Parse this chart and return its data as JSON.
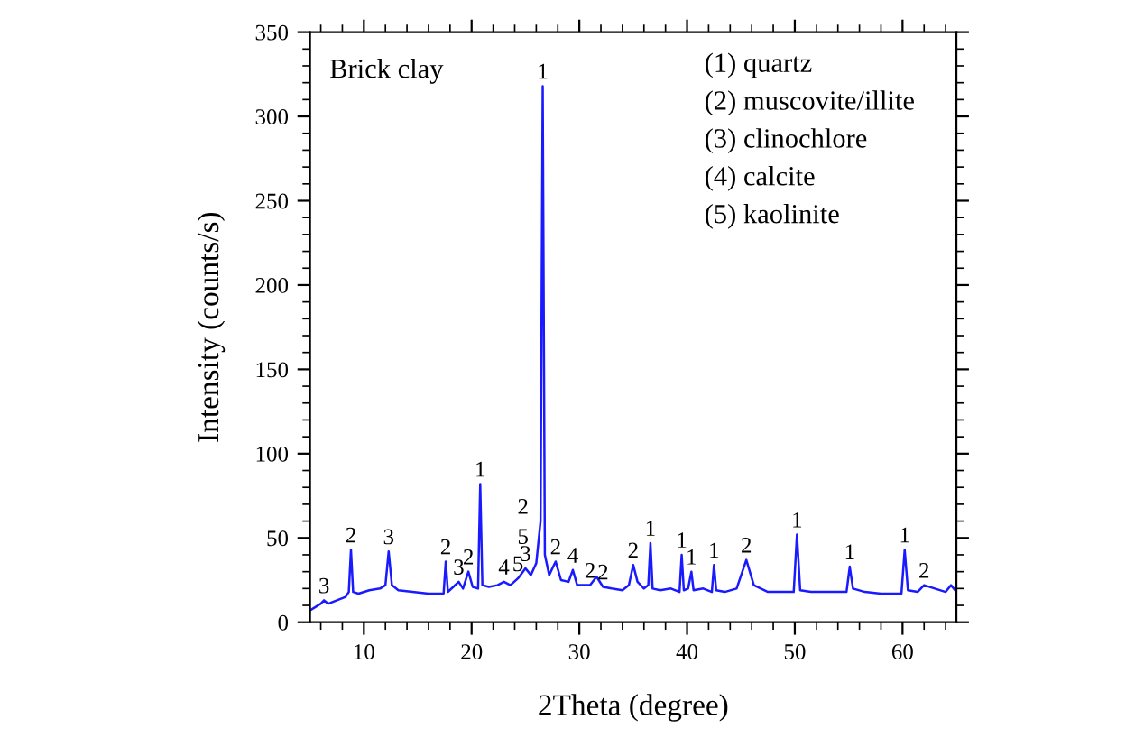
{
  "chart_data": {
    "type": "line",
    "xlabel": "2Theta (degree)",
    "ylabel": "Intensity (counts/s)",
    "xlim": [
      5,
      65
    ],
    "ylim": [
      0,
      350
    ],
    "xticks": [
      {
        "value": 6,
        "label": null
      },
      {
        "value": 8,
        "label": null
      },
      10,
      {
        "value": 12,
        "label": null
      },
      {
        "value": 14,
        "label": null
      },
      {
        "value": 16,
        "label": null
      },
      {
        "value": 18,
        "label": null
      },
      20,
      {
        "value": 22,
        "label": null
      },
      {
        "value": 24,
        "label": null
      },
      {
        "value": 26,
        "label": null
      },
      {
        "value": 28,
        "label": null
      },
      30,
      {
        "value": 32,
        "label": null
      },
      {
        "value": 34,
        "label": null
      },
      {
        "value": 36,
        "label": null
      },
      {
        "value": 38,
        "label": null
      },
      40,
      {
        "value": 42,
        "label": null
      },
      {
        "value": 44,
        "label": null
      },
      {
        "value": 46,
        "label": null
      },
      {
        "value": 48,
        "label": null
      },
      50,
      {
        "value": 52,
        "label": null
      },
      {
        "value": 54,
        "label": null
      },
      {
        "value": 56,
        "label": null
      },
      {
        "value": 58,
        "label": null
      },
      60,
      {
        "value": 62,
        "label": null
      },
      {
        "value": 64,
        "label": null
      }
    ],
    "yticks": [
      0,
      {
        "value": 10,
        "label": null
      },
      {
        "value": 20,
        "label": null
      },
      {
        "value": 30,
        "label": null
      },
      {
        "value": 40,
        "label": null
      },
      50,
      {
        "value": 60,
        "label": null
      },
      {
        "value": 70,
        "label": null
      },
      {
        "value": 80,
        "label": null
      },
      {
        "value": 90,
        "label": null
      },
      100,
      {
        "value": 110,
        "label": null
      },
      {
        "value": 120,
        "label": null
      },
      {
        "value": 130,
        "label": null
      },
      {
        "value": 140,
        "label": null
      },
      150,
      {
        "value": 160,
        "label": null
      },
      {
        "value": 170,
        "label": null
      },
      {
        "value": 180,
        "label": null
      },
      {
        "value": 190,
        "label": null
      },
      200,
      {
        "value": 210,
        "label": null
      },
      {
        "value": 220,
        "label": null
      },
      {
        "value": 230,
        "label": null
      },
      {
        "value": 240,
        "label": null
      },
      250,
      {
        "value": 260,
        "label": null
      },
      {
        "value": 270,
        "label": null
      },
      {
        "value": 280,
        "label": null
      },
      {
        "value": 290,
        "label": null
      },
      300,
      {
        "value": 310,
        "label": null
      },
      {
        "value": 320,
        "label": null
      },
      {
        "value": 330,
        "label": null
      },
      {
        "value": 340,
        "label": null
      },
      350
    ],
    "grid": false,
    "legend": false,
    "marker": "none",
    "line_style": "solid",
    "series": [
      {
        "color": "#1a1aff",
        "x": [
          5,
          5.5,
          6,
          6.3,
          6.7,
          7.5,
          8.3,
          8.6,
          8.8,
          9.0,
          9.5,
          10.5,
          11.5,
          12.0,
          12.3,
          12.6,
          13.2,
          14.5,
          16,
          17.4,
          17.6,
          17.8,
          18.3,
          18.8,
          19.2,
          19.7,
          20.1,
          20.6,
          20.8,
          21.0,
          21.6,
          22.4,
          23.0,
          23.6,
          24.3,
          25.0,
          25.5,
          26.0,
          26.4,
          26.6,
          26.8,
          27.2,
          27.8,
          28.3,
          29.0,
          29.4,
          29.8,
          30.4,
          31.0,
          31.6,
          32.2,
          33.0,
          34.0,
          34.6,
          35.0,
          35.4,
          36.0,
          36.4,
          36.6,
          36.8,
          37.5,
          38.5,
          39.3,
          39.5,
          39.7,
          40.1,
          40.4,
          40.6,
          41.5,
          42.3,
          42.5,
          42.7,
          43.5,
          44.6,
          45.5,
          46.2,
          47.5,
          49.0,
          49.9,
          50.2,
          50.5,
          51.5,
          53.0,
          54.8,
          55.1,
          55.4,
          56.5,
          58.0,
          59.9,
          60.2,
          60.5,
          61.4,
          62.0,
          63.0,
          64.0,
          64.5,
          65
        ],
        "values": [
          7,
          9,
          11,
          13,
          11,
          13,
          15,
          18,
          43,
          18,
          17,
          19,
          20,
          22,
          42,
          22,
          19,
          18,
          17,
          17,
          36,
          18,
          21,
          24,
          20,
          30,
          21,
          20,
          82,
          22,
          21,
          22,
          24,
          22,
          26,
          32,
          28,
          35,
          60,
          318,
          40,
          28,
          36,
          25,
          24,
          31,
          22,
          22,
          22,
          27,
          21,
          20,
          19,
          22,
          34,
          24,
          20,
          22,
          47,
          20,
          19,
          20,
          18,
          40,
          19,
          20,
          30,
          19,
          20,
          18,
          34,
          19,
          18,
          20,
          37,
          22,
          18,
          18,
          18,
          52,
          19,
          18,
          18,
          18,
          33,
          20,
          18,
          17,
          17,
          43,
          19,
          18,
          22,
          20,
          18,
          22,
          18
        ]
      }
    ],
    "annotations": [
      "Brick clay",
      "(1) quartz",
      "(2) muscovite/illite",
      "(3) clinochlore",
      "(4) calcite",
      "(5) kaolinite",
      {
        "text": "3",
        "x": 6.3,
        "y": 13
      },
      {
        "text": "2",
        "x": 8.8,
        "y": 43
      },
      {
        "text": "3",
        "x": 12.3,
        "y": 42
      },
      {
        "text": "2",
        "x": 17.6,
        "y": 36
      },
      {
        "text": "3",
        "x": 18.8,
        "y": 24
      },
      {
        "text": "2",
        "x": 19.7,
        "y": 30
      },
      {
        "text": "1",
        "x": 20.8,
        "y": 82
      },
      {
        "text": "4",
        "x": 23.0,
        "y": 24
      },
      {
        "text": "5",
        "x": 24.3,
        "y": 26
      },
      {
        "text": "3",
        "x": 25.0,
        "y": 32
      },
      {
        "text": "5",
        "x": 26.4,
        "y": 60
      },
      {
        "text": "2",
        "x": 26.4,
        "y": 60
      },
      {
        "text": "1",
        "x": 26.6,
        "y": 318
      },
      {
        "text": "2",
        "x": 27.8,
        "y": 36
      },
      {
        "text": "4",
        "x": 29.4,
        "y": 31
      },
      {
        "text": "2",
        "x": 31.0,
        "y": 22
      },
      {
        "text": "2",
        "x": 32.2,
        "y": 21
      },
      {
        "text": "2",
        "x": 35.0,
        "y": 34
      },
      {
        "text": "1",
        "x": 36.6,
        "y": 47
      },
      {
        "text": "1",
        "x": 39.5,
        "y": 40
      },
      {
        "text": "1",
        "x": 40.4,
        "y": 30
      },
      {
        "text": "1",
        "x": 42.5,
        "y": 34
      },
      {
        "text": "2",
        "x": 45.5,
        "y": 37
      },
      {
        "text": "1",
        "x": 50.2,
        "y": 52
      },
      {
        "text": "1",
        "x": 55.1,
        "y": 33
      },
      {
        "text": "1",
        "x": 60.2,
        "y": 43
      },
      {
        "text": "2",
        "x": 62.0,
        "y": 22
      }
    ]
  }
}
